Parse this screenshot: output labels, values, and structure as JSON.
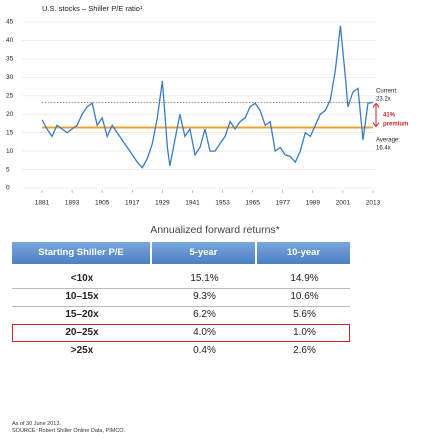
{
  "chart_data": {
    "type": "line",
    "title": "U.S. stocks – Shiller P/E ratio¹",
    "x": [
      1881,
      1883,
      1885,
      1887,
      1889,
      1891,
      1893,
      1895,
      1897,
      1899,
      1901,
      1903,
      1905,
      1907,
      1909,
      1911,
      1913,
      1915,
      1917,
      1919,
      1921,
      1923,
      1925,
      1927,
      1929,
      1931,
      1932,
      1934,
      1936,
      1938,
      1940,
      1942,
      1944,
      1946,
      1948,
      1950,
      1952,
      1954,
      1956,
      1958,
      1960,
      1962,
      1964,
      1966,
      1968,
      1970,
      1972,
      1974,
      1976,
      1978,
      1980,
      1982,
      1984,
      1986,
      1988,
      1990,
      1992,
      1994,
      1996,
      1998,
      2000,
      2002,
      2003,
      2005,
      2007,
      2009,
      2011,
      2013
    ],
    "series": [
      {
        "color": "#3a7cc4",
        "values": [
          18.5,
          16,
          14,
          17,
          16,
          15,
          16,
          17,
          20,
          22,
          23,
          17,
          19,
          14,
          17,
          15,
          13,
          11,
          9,
          7,
          5.5,
          8,
          12,
          19,
          29,
          11,
          6,
          13,
          20,
          14,
          16,
          9,
          11,
          16,
          10,
          10,
          12,
          14,
          18,
          16,
          18,
          19,
          22,
          23,
          21,
          17,
          18,
          10,
          11,
          9,
          8.5,
          7,
          10,
          15,
          14,
          17,
          20,
          21,
          24,
          32,
          44,
          30,
          22,
          26,
          27,
          13,
          23,
          23.2
        ]
      }
    ],
    "reference_lines": [
      {
        "value": 23.2,
        "color": "#888888",
        "style": "dotted"
      },
      {
        "value": 16.4,
        "color": "#f0a030",
        "style": "solid"
      }
    ],
    "annotations": [
      "Current:",
      "23.2x",
      "41%",
      "premium",
      "Average:",
      "16.4x"
    ],
    "xlim": [
      1881,
      2013
    ],
    "xticks": [
      1881,
      1893,
      1905,
      1917,
      1929,
      1941,
      1953,
      1965,
      1977,
      1989,
      2001,
      2013
    ],
    "ylim": [
      0,
      45
    ],
    "yticks": [
      0,
      5,
      10,
      15,
      20,
      25,
      30,
      35,
      40,
      45
    ],
    "grid": true
  },
  "table": {
    "title": "Annualized forward returns*",
    "header": [
      "Starting Shiller P/E",
      "5-year",
      "10-year"
    ],
    "rows": [
      [
        "<10x",
        "15.1%",
        "14.9%"
      ],
      [
        "10–15x",
        "9.3%",
        "10.6%"
      ],
      [
        "15–20x",
        "6.2%",
        "5.6%"
      ],
      [
        "20–25x",
        "4.0%",
        "1.0%"
      ],
      [
        ">25x",
        "0.4%",
        "2.6%"
      ]
    ],
    "highlight_row": 3,
    "highlight_color": "#d0202a",
    "header_color": "#4a80c2"
  },
  "footnotes": [
    "As of 30 June 2013.",
    "SOURCE: Robert Shiller Online Data, PIMCO."
  ]
}
